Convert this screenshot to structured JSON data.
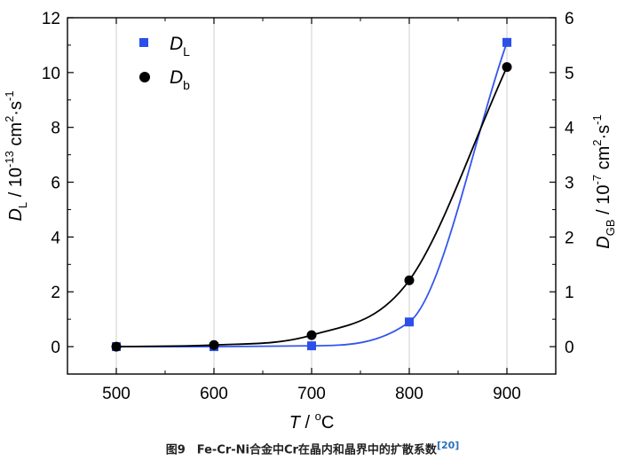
{
  "chart_data": {
    "type": "scatter",
    "x": [
      500,
      600,
      700,
      800,
      900
    ],
    "xlim": [
      450,
      950
    ],
    "xticks": [
      500,
      600,
      700,
      800,
      900
    ],
    "xlabel": {
      "italic": "T",
      "rest": " / °C"
    },
    "left_axis": {
      "ylim": [
        -1,
        12
      ],
      "ticks": [
        0,
        2,
        4,
        6,
        8,
        10,
        12
      ],
      "label": {
        "symbol": "D",
        "sub": "L",
        "unit": " / 10",
        "exp": "-13",
        "unit2": " cm",
        "exp2": "2",
        "unit3": "·s",
        "exp3": "-1"
      }
    },
    "right_axis": {
      "ylim": [
        -0.5,
        6
      ],
      "ticks": [
        0,
        1,
        2,
        3,
        4,
        5,
        6
      ],
      "label": {
        "symbol": "D",
        "sub": "GB",
        "unit": " / 10",
        "exp": "-7",
        "unit2": " cm",
        "exp2": "2",
        "unit3": "·s",
        "exp3": "-1"
      }
    },
    "grid": "vertical",
    "legend_position": "top-left",
    "series": [
      {
        "name": "D",
        "name_sub": "L",
        "axis": "left",
        "marker": "square",
        "color": "#2b4fe8",
        "values": [
          0.0,
          0.0,
          0.03,
          0.9,
          11.1
        ]
      },
      {
        "name": "D",
        "name_sub": "b",
        "axis": "right",
        "marker": "circle",
        "color": "#000000",
        "values": [
          0.0,
          0.03,
          0.21,
          1.21,
          5.1
        ]
      }
    ]
  },
  "caption": {
    "text": "图9　Fe-Cr-Ni合金中Cr在晶内和晶界中的扩散系数",
    "ref": "[20]"
  }
}
